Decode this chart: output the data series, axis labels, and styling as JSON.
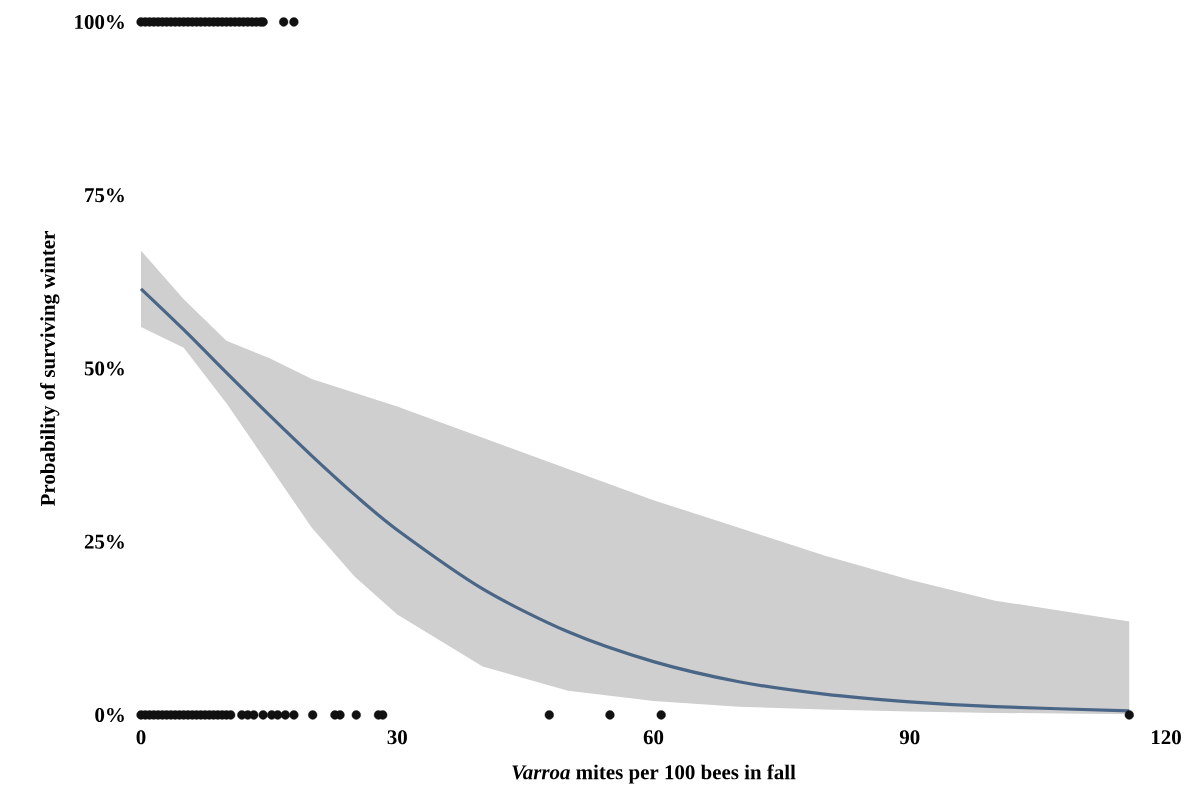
{
  "chart_data": {
    "type": "scatter",
    "xlabel": "*Varroa* mites per 100 bees in fall",
    "ylabel": "Probability of surviving winter",
    "xlim": [
      0,
      120
    ],
    "ylim": [
      0,
      100
    ],
    "xticks": [
      0,
      30,
      60,
      90,
      120
    ],
    "yticks": [
      {
        "value": 0,
        "label": "0%"
      },
      {
        "value": 25,
        "label": "25%"
      },
      {
        "value": 50,
        "label": "50%"
      },
      {
        "value": 75,
        "label": "75%"
      },
      {
        "value": 100,
        "label": "100%"
      }
    ],
    "grid": false,
    "series": [
      {
        "type": "line",
        "color": "#4a6687",
        "marker": "none",
        "x": [
          0,
          5,
          10,
          15,
          20,
          25,
          30,
          40,
          50,
          60,
          70,
          80,
          90,
          100,
          115.7
        ],
        "values": [
          61.5,
          55.6,
          49.4,
          43.3,
          37.4,
          31.8,
          26.7,
          18.2,
          12.0,
          7.7,
          4.8,
          3.0,
          1.9,
          1.2,
          0.6
        ],
        "lower": [
          56,
          53,
          45,
          36,
          27,
          20,
          14.5,
          7,
          3.5,
          2,
          1.2,
          0.8,
          0.5,
          0.3,
          0.1
        ],
        "upper": [
          67,
          60,
          54,
          51.5,
          48.5,
          46.5,
          44.5,
          40,
          35.5,
          31,
          27,
          23,
          19.5,
          16.5,
          13.5
        ]
      },
      {
        "color": "#111111",
        "x": [
          0,
          0.5,
          1,
          1.5,
          2,
          2.5,
          3,
          3.5,
          4,
          4.5,
          5,
          5.5,
          6,
          6.5,
          7,
          7.5,
          8,
          8.5,
          9,
          9.5,
          10,
          10.5,
          11,
          11.5,
          12,
          12.5,
          13,
          13.5,
          14,
          14.3,
          16.7,
          17.9,
          0,
          0.5,
          1,
          1.5,
          2,
          2.5,
          3,
          3.5,
          4,
          4.5,
          5,
          5.5,
          6,
          6.5,
          7,
          7.5,
          8,
          8.5,
          9,
          9.5,
          10,
          10.5,
          11.8,
          12.5,
          13.2,
          14.3,
          15.3,
          16,
          16.9,
          17.9,
          20.1,
          22.7,
          23.3,
          25.2,
          27.8,
          28.3,
          47.8,
          54.9,
          60.9,
          115.7
        ],
        "values": [
          100,
          100,
          100,
          100,
          100,
          100,
          100,
          100,
          100,
          100,
          100,
          100,
          100,
          100,
          100,
          100,
          100,
          100,
          100,
          100,
          100,
          100,
          100,
          100,
          100,
          100,
          100,
          100,
          100,
          100,
          100,
          100,
          0,
          0,
          0,
          0,
          0,
          0,
          0,
          0,
          0,
          0,
          0,
          0,
          0,
          0,
          0,
          0,
          0,
          0,
          0,
          0,
          0,
          0,
          0,
          0,
          0,
          0,
          0,
          0,
          0,
          0,
          0,
          0,
          0,
          0,
          0,
          0,
          0,
          0,
          0,
          0
        ]
      }
    ]
  }
}
